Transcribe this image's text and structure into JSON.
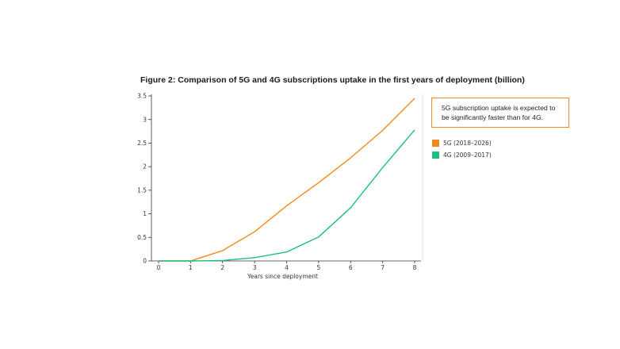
{
  "title": "Figure 2: Comparison of 5G and 4G subscriptions uptake in the first years of deployment (billion)",
  "annotation": "5G subscription uptake is expected to be significantly faster than for 4G.",
  "colors": {
    "5G": "#f08a1c",
    "4G": "#1dbf7f",
    "axis": "#333333",
    "grid": "#d9d9d9"
  },
  "chart_data": {
    "type": "line",
    "title": "Figure 2: Comparison of 5G and 4G subscriptions uptake in the first years of deployment (billion)",
    "xlabel": "Years since deployment",
    "ylabel": "",
    "x": [
      0,
      1,
      2,
      3,
      4,
      5,
      6,
      7,
      8
    ],
    "x_ticks": [
      "0",
      "1",
      "2",
      "3",
      "4",
      "5",
      "6",
      "7",
      "8"
    ],
    "y_ticks": [
      "0",
      "0.5",
      "1",
      "1.5",
      "2",
      "2.5",
      "3",
      "3.5"
    ],
    "xlim": [
      0,
      8
    ],
    "ylim": [
      0,
      3.5
    ],
    "grid": false,
    "legend_position": "right",
    "series": [
      {
        "name": "5G (2018–2026)",
        "values": [
          0,
          0,
          0.22,
          0.62,
          1.17,
          1.66,
          2.19,
          2.77,
          3.45
        ]
      },
      {
        "name": "4G (2009–2017)",
        "values": [
          0,
          0,
          0.01,
          0.07,
          0.19,
          0.51,
          1.13,
          1.98,
          2.78
        ]
      }
    ]
  }
}
